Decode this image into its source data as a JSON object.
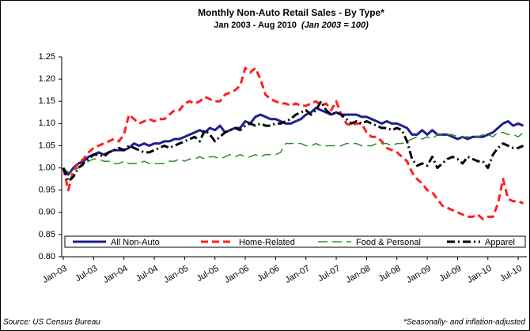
{
  "chart_data": {
    "type": "line",
    "title": "Monthly Non-Auto Retail Sales - By Type*",
    "subtitle": "Jan 2003 - Aug 2010",
    "subtitle_note": "(Jan 2003 = 100)",
    "source": "Source: US Census Bureau",
    "footnote": "*Seasonally- and inflation-adjusted",
    "legend": "bottom",
    "grid": false,
    "categories": [
      "Jan-03",
      null,
      null,
      null,
      null,
      null,
      "Jul-03",
      null,
      null,
      null,
      null,
      null,
      "Jan-04",
      null,
      null,
      null,
      null,
      null,
      "Jul-04",
      null,
      null,
      null,
      null,
      null,
      "Jan-05",
      null,
      null,
      null,
      null,
      null,
      "Jul-05",
      null,
      null,
      null,
      null,
      null,
      "Jan-06",
      null,
      null,
      null,
      null,
      null,
      "Jul-06",
      null,
      null,
      null,
      null,
      null,
      "Jan-07",
      null,
      null,
      null,
      null,
      null,
      "Jul-07",
      null,
      null,
      null,
      null,
      null,
      "Jan-08",
      null,
      null,
      null,
      null,
      null,
      "Jul-08",
      null,
      null,
      null,
      null,
      null,
      "Jan-09",
      null,
      null,
      null,
      null,
      null,
      "Jul-09",
      null,
      null,
      null,
      null,
      null,
      "Jan-10",
      null,
      null,
      null,
      null,
      null,
      "Jul-10",
      null
    ],
    "ylim": [
      0.8,
      1.25
    ],
    "yticks": [
      {
        "value": 0.8,
        "label": "0.80"
      },
      0.85,
      {
        "value": 0.9,
        "label": "0.90"
      },
      0.95,
      {
        "value": 1.0,
        "label": "1.00"
      },
      1.05,
      {
        "value": 1.1,
        "label": "1.10"
      },
      1.15,
      {
        "value": 1.2,
        "label": "1.20"
      },
      1.25
    ],
    "series": [
      {
        "name": "All Non-Auto",
        "color": "#1f1f8f",
        "dash": "solid",
        "values": [
          1.0,
          0.985,
          1.0,
          1.01,
          1.015,
          1.025,
          1.03,
          1.035,
          1.03,
          1.035,
          1.04,
          1.04,
          1.04,
          1.045,
          1.055,
          1.05,
          1.055,
          1.05,
          1.055,
          1.055,
          1.06,
          1.06,
          1.065,
          1.065,
          1.07,
          1.075,
          1.08,
          1.085,
          1.08,
          1.09,
          1.085,
          1.095,
          1.08,
          1.085,
          1.09,
          1.09,
          1.105,
          1.1,
          1.115,
          1.12,
          1.115,
          1.11,
          1.11,
          1.105,
          1.1,
          1.1,
          1.105,
          1.11,
          1.12,
          1.125,
          1.135,
          1.13,
          1.125,
          1.12,
          1.125,
          1.12,
          1.12,
          1.12,
          1.12,
          1.115,
          1.115,
          1.11,
          1.105,
          1.1,
          1.105,
          1.1,
          1.1,
          1.095,
          1.09,
          1.075,
          1.075,
          1.085,
          1.075,
          1.085,
          1.075,
          1.075,
          1.075,
          1.07,
          1.065,
          1.07,
          1.065,
          1.07,
          1.07,
          1.07,
          1.075,
          1.08,
          1.09,
          1.1,
          1.105,
          1.095,
          1.1,
          1.095
        ]
      },
      {
        "name": "Home-Related",
        "color": "#ff2020",
        "dash": "dash",
        "values": [
          1.0,
          0.95,
          0.995,
          1.01,
          1.02,
          1.035,
          1.045,
          1.05,
          1.055,
          1.06,
          1.065,
          1.06,
          1.075,
          1.12,
          1.11,
          1.1,
          1.105,
          1.11,
          1.105,
          1.11,
          1.11,
          1.12,
          1.13,
          1.13,
          1.145,
          1.15,
          1.145,
          1.15,
          1.16,
          1.155,
          1.15,
          1.15,
          1.165,
          1.17,
          1.175,
          1.185,
          1.225,
          1.215,
          1.225,
          1.2,
          1.165,
          1.155,
          1.15,
          1.145,
          1.145,
          1.14,
          1.145,
          1.14,
          1.14,
          1.145,
          1.15,
          1.14,
          1.145,
          1.13,
          1.15,
          1.12,
          1.1,
          1.095,
          1.1,
          1.1,
          1.08,
          1.07,
          1.07,
          1.06,
          1.045,
          1.04,
          1.035,
          1.025,
          1.015,
          0.99,
          0.975,
          0.965,
          0.95,
          0.945,
          0.93,
          0.915,
          0.91,
          0.905,
          0.9,
          0.895,
          0.89,
          0.89,
          0.895,
          0.885,
          0.89,
          0.89,
          0.92,
          0.975,
          0.93,
          0.925,
          0.925,
          0.92
        ]
      },
      {
        "name": "Food & Personal",
        "color": "#2e8b2e",
        "dash": "longdash",
        "values": [
          1.0,
          0.99,
          0.995,
          1.0,
          1.005,
          1.015,
          1.02,
          1.02,
          1.015,
          1.015,
          1.01,
          1.01,
          1.015,
          1.01,
          1.01,
          1.01,
          1.015,
          1.01,
          1.01,
          1.01,
          1.01,
          1.015,
          1.015,
          1.02,
          1.015,
          1.02,
          1.02,
          1.025,
          1.02,
          1.025,
          1.025,
          1.02,
          1.025,
          1.03,
          1.025,
          1.03,
          1.025,
          1.025,
          1.03,
          1.025,
          1.03,
          1.03,
          1.03,
          1.035,
          1.055,
          1.055,
          1.055,
          1.055,
          1.05,
          1.05,
          1.055,
          1.05,
          1.05,
          1.05,
          1.05,
          1.05,
          1.055,
          1.055,
          1.055,
          1.05,
          1.05,
          1.05,
          1.055,
          1.055,
          1.055,
          1.05,
          1.055,
          1.055,
          1.06,
          1.065,
          1.07,
          1.065,
          1.07,
          1.065,
          1.075,
          1.075,
          1.075,
          1.075,
          1.07,
          1.07,
          1.07,
          1.07,
          1.07,
          1.075,
          1.075,
          1.07,
          1.08,
          1.08,
          1.075,
          1.075,
          1.07,
          1.08
        ]
      },
      {
        "name": "Apparel",
        "color": "#000000",
        "dash": "dashdot",
        "values": [
          1.0,
          0.97,
          0.98,
          1.0,
          1.01,
          1.02,
          1.03,
          1.03,
          1.025,
          1.035,
          1.04,
          1.045,
          1.04,
          1.05,
          1.045,
          1.04,
          1.035,
          1.035,
          1.04,
          1.045,
          1.05,
          1.045,
          1.05,
          1.055,
          1.06,
          1.065,
          1.07,
          1.06,
          1.085,
          1.075,
          1.06,
          1.07,
          1.08,
          1.085,
          1.09,
          1.085,
          1.095,
          1.1,
          1.095,
          1.1,
          1.095,
          1.095,
          1.1,
          1.1,
          1.105,
          1.11,
          1.12,
          1.125,
          1.13,
          1.12,
          1.13,
          1.15,
          1.13,
          1.12,
          1.125,
          1.12,
          1.11,
          1.1,
          1.105,
          1.1,
          1.105,
          1.1,
          1.095,
          1.09,
          1.09,
          1.085,
          1.09,
          1.085,
          1.06,
          1.02,
          1.005,
          1.01,
          1.005,
          1.025,
          1.0,
          1.01,
          1.02,
          1.025,
          1.02,
          1.01,
          1.025,
          1.02,
          1.015,
          1.015,
          1.0,
          1.03,
          1.045,
          1.055,
          1.05,
          1.045,
          1.045,
          1.05
        ]
      }
    ]
  }
}
